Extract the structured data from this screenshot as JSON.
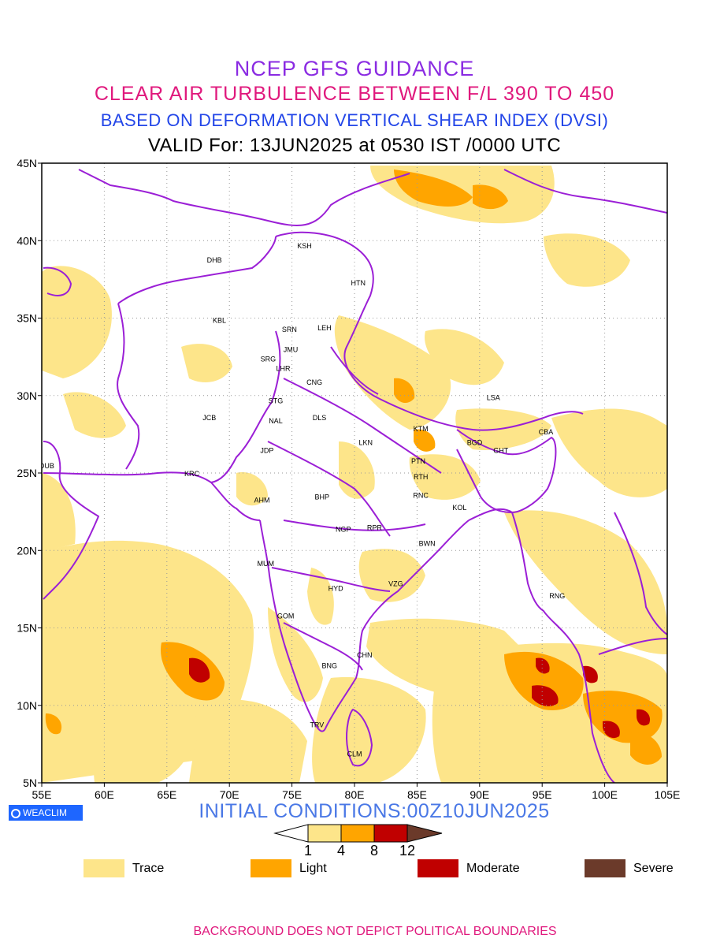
{
  "titles": {
    "line1": "NCEP GFS GUIDANCE",
    "line2": "CLEAR AIR TURBULENCE BETWEEN F/L 390 TO 450",
    "line3": "BASED ON DEFORMATION VERTICAL SHEAR INDEX (DVSI)",
    "line4": "VALID For: 13JUN2025 at 0530 IST /0000 UTC"
  },
  "colors": {
    "title1": "#8a2be2",
    "title2": "#e0197d",
    "title3": "#2346e8",
    "title4": "#000000",
    "boundary": "#9b1fd6",
    "trace": "#fde58a",
    "light": "#ffa500",
    "moderate": "#c00000",
    "severe": "#6b3a2a",
    "footer": "#e0197d"
  },
  "map": {
    "lon_range": [
      55,
      105
    ],
    "lat_range": [
      5,
      45
    ],
    "x_ticks": [
      "55E",
      "60E",
      "65E",
      "70E",
      "75E",
      "80E",
      "85E",
      "90E",
      "95E",
      "100E",
      "105E"
    ],
    "y_ticks": [
      "45N",
      "40N",
      "35N",
      "30N",
      "25N",
      "20N",
      "15N",
      "10N",
      "5N"
    ],
    "grid": "dotted, every 5 degrees",
    "stations": [
      {
        "code": "KSH",
        "lon": 76.0,
        "lat": 39.5
      },
      {
        "code": "DHB",
        "lon": 68.8,
        "lat": 38.6
      },
      {
        "code": "HTN",
        "lon": 80.3,
        "lat": 37.1
      },
      {
        "code": "KBL",
        "lon": 69.2,
        "lat": 34.7
      },
      {
        "code": "SRN",
        "lon": 74.8,
        "lat": 34.1
      },
      {
        "code": "LEH",
        "lon": 77.6,
        "lat": 34.2
      },
      {
        "code": "JMU",
        "lon": 74.9,
        "lat": 32.8
      },
      {
        "code": "SRG",
        "lon": 73.1,
        "lat": 32.2
      },
      {
        "code": "LHR",
        "lon": 74.3,
        "lat": 31.6
      },
      {
        "code": "CNG",
        "lon": 76.8,
        "lat": 30.7
      },
      {
        "code": "LSA",
        "lon": 91.1,
        "lat": 29.7
      },
      {
        "code": "STG",
        "lon": 73.7,
        "lat": 29.5
      },
      {
        "code": "JCB",
        "lon": 68.4,
        "lat": 28.4
      },
      {
        "code": "NAL",
        "lon": 73.7,
        "lat": 28.2
      },
      {
        "code": "DLS",
        "lon": 77.2,
        "lat": 28.4
      },
      {
        "code": "KTM",
        "lon": 85.3,
        "lat": 27.7
      },
      {
        "code": "CBA",
        "lon": 95.3,
        "lat": 27.5
      },
      {
        "code": "BGD",
        "lon": 89.6,
        "lat": 26.8
      },
      {
        "code": "GHT",
        "lon": 91.7,
        "lat": 26.3
      },
      {
        "code": "LKN",
        "lon": 80.9,
        "lat": 26.8
      },
      {
        "code": "JDP",
        "lon": 73.0,
        "lat": 26.3
      },
      {
        "code": "PTN",
        "lon": 85.1,
        "lat": 25.6
      },
      {
        "code": "DUB",
        "lon": 55.4,
        "lat": 25.3
      },
      {
        "code": "KRC",
        "lon": 67.0,
        "lat": 24.8
      },
      {
        "code": "RTH",
        "lon": 85.3,
        "lat": 24.6
      },
      {
        "code": "BHP",
        "lon": 77.4,
        "lat": 23.3
      },
      {
        "code": "AHM",
        "lon": 72.6,
        "lat": 23.1
      },
      {
        "code": "RNC",
        "lon": 85.3,
        "lat": 23.4
      },
      {
        "code": "KOL",
        "lon": 88.4,
        "lat": 22.6
      },
      {
        "code": "NGP",
        "lon": 79.1,
        "lat": 21.2
      },
      {
        "code": "RPR",
        "lon": 81.6,
        "lat": 21.3
      },
      {
        "code": "BWN",
        "lon": 85.8,
        "lat": 20.3
      },
      {
        "code": "MUM",
        "lon": 72.9,
        "lat": 19.0
      },
      {
        "code": "HYD",
        "lon": 78.5,
        "lat": 17.4
      },
      {
        "code": "VZG",
        "lon": 83.3,
        "lat": 17.7
      },
      {
        "code": "RNG",
        "lon": 96.2,
        "lat": 16.9
      },
      {
        "code": "GOM",
        "lon": 74.5,
        "lat": 15.6
      },
      {
        "code": "CHN",
        "lon": 80.8,
        "lat": 13.1
      },
      {
        "code": "BNG",
        "lon": 78.0,
        "lat": 12.4
      },
      {
        "code": "TRV",
        "lon": 77.0,
        "lat": 8.6
      },
      {
        "code": "CLM",
        "lon": 80.0,
        "lat": 6.7
      }
    ]
  },
  "badge": {
    "label": "WEACLIM",
    "icon": "circle-logo-icon"
  },
  "initial_conditions": "INITIAL CONDITIONS:00Z10JUN2025",
  "colorbar": {
    "ticks": [
      "1",
      "4",
      "8",
      "12"
    ]
  },
  "legend": [
    {
      "label": "Trace",
      "color": "#fde58a"
    },
    {
      "label": "Light",
      "color": "#ffa500"
    },
    {
      "label": "Moderate",
      "color": "#c00000"
    },
    {
      "label": "Severe",
      "color": "#6b3a2a"
    }
  ],
  "footer": "BACKGROUND DOES NOT DEPICT POLITICAL BOUNDARIES"
}
